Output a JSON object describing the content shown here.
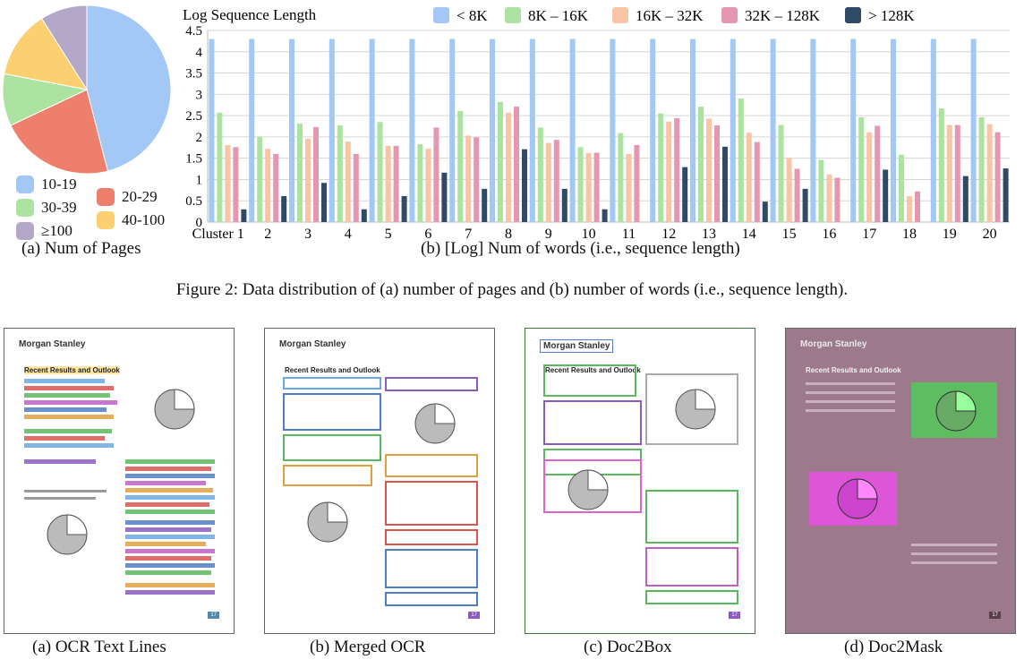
{
  "figure_caption": "Figure 2: Data distribution of (a) number of pages and (b) number of words (i.e., sequence length).",
  "captions": {
    "a_pages": "(a) Num of Pages",
    "b_words": "(b) [Log] Num of words (i.e., sequence length)",
    "ocr_lines": "(a) OCR Text  Lines",
    "merged_ocr": "(b) Merged OCR",
    "doc2box": "(c) Doc2Box",
    "doc2mask": "(d) Doc2Mask"
  },
  "doc_sample": {
    "logo": "Morgan Stanley",
    "heading": "Recent Results and Outlook",
    "page_number": "17"
  },
  "chart_data": [
    {
      "type": "pie",
      "categories": [
        "10-19",
        "20-29",
        "30-39",
        "40-100",
        "≥100"
      ],
      "values": [
        46,
        22,
        10,
        13,
        9
      ],
      "colors": [
        "#a4c8f5",
        "#ee7f6d",
        "#ace3a0",
        "#fbd071",
        "#b4a8c9"
      ],
      "legend_placement": "bottom"
    },
    {
      "type": "bar",
      "title": "Log Sequence Length",
      "xlabel": "",
      "ylabel": "",
      "categories": [
        "Cluster 1",
        "2",
        "3",
        "4",
        "5",
        "6",
        "7",
        "8",
        "9",
        "10",
        "11",
        "12",
        "13",
        "14",
        "15",
        "16",
        "17",
        "18",
        "19",
        "20"
      ],
      "ylim": [
        0,
        4.5
      ],
      "yticks": [
        "0",
        "0.5",
        "1",
        "1.5",
        "2",
        "2.5",
        "3",
        "3.5",
        "4",
        "4.5"
      ],
      "grid": true,
      "legend_placement": "top",
      "series": [
        {
          "name": "< 8K",
          "color": "#a4c8f5",
          "values": [
            4.3,
            4.3,
            4.3,
            4.3,
            4.3,
            4.3,
            4.3,
            4.3,
            4.3,
            4.3,
            4.3,
            4.3,
            4.3,
            4.3,
            4.3,
            4.3,
            4.3,
            4.3,
            4.3,
            4.3
          ]
        },
        {
          "name": "8K – 16K",
          "color": "#ace3a0",
          "values": [
            2.57,
            2.01,
            2.31,
            2.27,
            2.35,
            1.83,
            2.61,
            2.82,
            2.22,
            1.76,
            2.09,
            2.55,
            2.71,
            2.9,
            2.28,
            1.46,
            2.46,
            1.58,
            2.67,
            2.46
          ]
        },
        {
          "name": "16K – 32K",
          "color": "#f8c6a6",
          "values": [
            1.81,
            1.72,
            1.96,
            1.89,
            1.79,
            1.72,
            2.03,
            2.57,
            1.86,
            1.62,
            1.6,
            2.36,
            2.43,
            2.1,
            1.51,
            1.12,
            2.11,
            0.61,
            2.28,
            2.3
          ]
        },
        {
          "name": "32K – 128K",
          "color": "#e596b0",
          "values": [
            1.76,
            1.6,
            2.23,
            1.6,
            1.79,
            2.22,
            1.99,
            2.71,
            1.93,
            1.63,
            1.81,
            2.44,
            2.27,
            1.88,
            1.25,
            1.04,
            2.26,
            0.72,
            2.28,
            2.11
          ]
        },
        {
          "name": "> 128K",
          "color": "#2f4a66",
          "values": [
            0.3,
            0.61,
            0.92,
            0.3,
            0.61,
            1.16,
            0.78,
            1.71,
            0.78,
            0.3,
            0,
            1.29,
            1.77,
            0.48,
            0.78,
            0,
            1.23,
            0,
            1.08,
            1.26
          ]
        }
      ]
    }
  ]
}
